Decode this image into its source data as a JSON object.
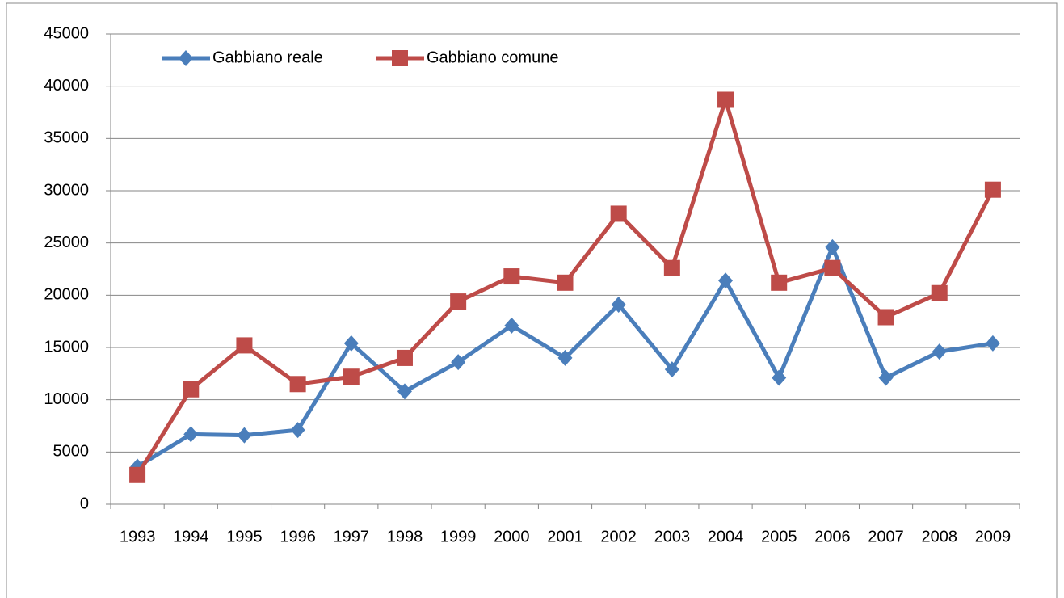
{
  "chart_data": {
    "type": "line",
    "categories": [
      "1993",
      "1994",
      "1995",
      "1996",
      "1997",
      "1998",
      "1999",
      "2000",
      "2001",
      "2002",
      "2003",
      "2004",
      "2005",
      "2006",
      "2007",
      "2008",
      "2009"
    ],
    "series": [
      {
        "name": "Gabbiano reale",
        "color": "#4a7ebb",
        "marker": "diamond",
        "values": [
          3600,
          6700,
          6600,
          7100,
          15400,
          10800,
          13600,
          17100,
          14000,
          19100,
          12900,
          21400,
          12100,
          24600,
          12100,
          14600,
          15400
        ]
      },
      {
        "name": "Gabbiano comune",
        "color": "#be4b48",
        "marker": "square",
        "values": [
          2800,
          11000,
          15200,
          11500,
          12200,
          14000,
          19400,
          21800,
          21200,
          27800,
          22600,
          38700,
          21200,
          22600,
          17900,
          20200,
          30100
        ]
      }
    ],
    "ylim": [
      0,
      45000
    ],
    "yticks": [
      0,
      5000,
      10000,
      15000,
      20000,
      25000,
      30000,
      35000,
      40000,
      45000
    ],
    "grid": true,
    "legend": "top-left"
  }
}
